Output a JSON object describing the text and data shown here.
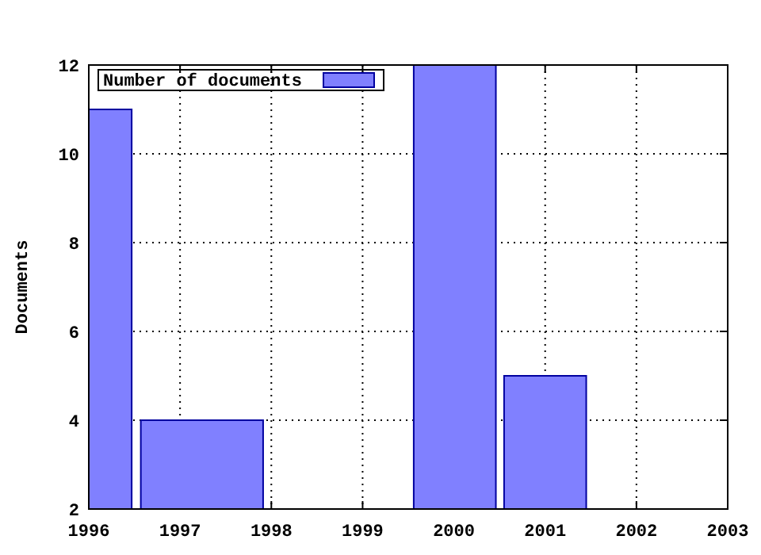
{
  "chart_data": {
    "type": "histogram",
    "bins": [
      1996,
      1996.47,
      1996.57,
      1997.91,
      1999.56,
      2000.46,
      2000.55,
      2001.45
    ],
    "series": [
      {
        "name": "Number of documents",
        "color": "#8080ff",
        "values": [
          11,
          null,
          4,
          null,
          12,
          null,
          5
        ]
      }
    ],
    "ylabel": "Documents",
    "legend": "top left",
    "xlim": [
      1996,
      2003
    ],
    "xticks": [
      1996,
      1997,
      1998,
      1999,
      2000,
      2001,
      2002,
      2003
    ],
    "ylim": [
      2,
      12
    ],
    "yticks": [
      2,
      4,
      6,
      8,
      10,
      12
    ],
    "grid": true
  }
}
